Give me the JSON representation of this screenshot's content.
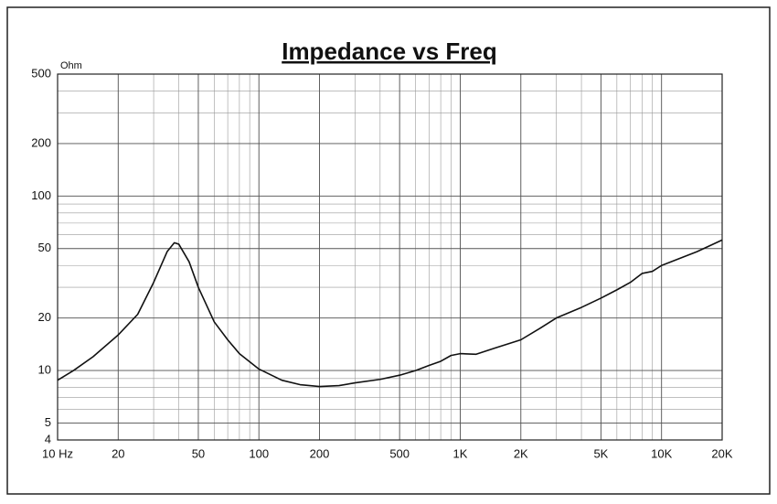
{
  "chart_data": {
    "type": "line",
    "title": "Impedance vs Freq",
    "y_label": "Ohm",
    "x": [
      10,
      12,
      15,
      20,
      25,
      30,
      35,
      38,
      40,
      45,
      50,
      60,
      70,
      80,
      100,
      130,
      160,
      200,
      250,
      300,
      400,
      500,
      600,
      700,
      800,
      900,
      1000,
      1200,
      1500,
      2000,
      2500,
      3000,
      4000,
      5000,
      6000,
      7000,
      8000,
      9000,
      10000,
      15000,
      20000
    ],
    "series": [
      {
        "name": "Impedance",
        "color": "#111111",
        "values": [
          8.8,
          10,
          12,
          16,
          21,
          32,
          48,
          54,
          53,
          42,
          30,
          19,
          15,
          12.5,
          10.2,
          8.8,
          8.3,
          8.1,
          8.2,
          8.5,
          8.9,
          9.4,
          10,
          10.7,
          11.3,
          12.2,
          12.5,
          12.4,
          13.5,
          15,
          17.5,
          20,
          23,
          26,
          29,
          32,
          36,
          37,
          40,
          48,
          56
        ]
      }
    ],
    "xlim": [
      10,
      20000
    ],
    "ylim": [
      4,
      500
    ],
    "log_x": true,
    "log_y": true,
    "grid": true,
    "minor_grid": true,
    "xticks": [
      {
        "value": 10,
        "label": "10 Hz"
      },
      20,
      50,
      100,
      200,
      500,
      {
        "value": 1000,
        "label": "1K"
      },
      {
        "value": 2000,
        "label": "2K"
      },
      {
        "value": 5000,
        "label": "5K"
      },
      {
        "value": 10000,
        "label": "10K"
      },
      {
        "value": 20000,
        "label": "20K"
      }
    ],
    "yticks": [
      4,
      5,
      10,
      20,
      50,
      100,
      200,
      500
    ]
  }
}
